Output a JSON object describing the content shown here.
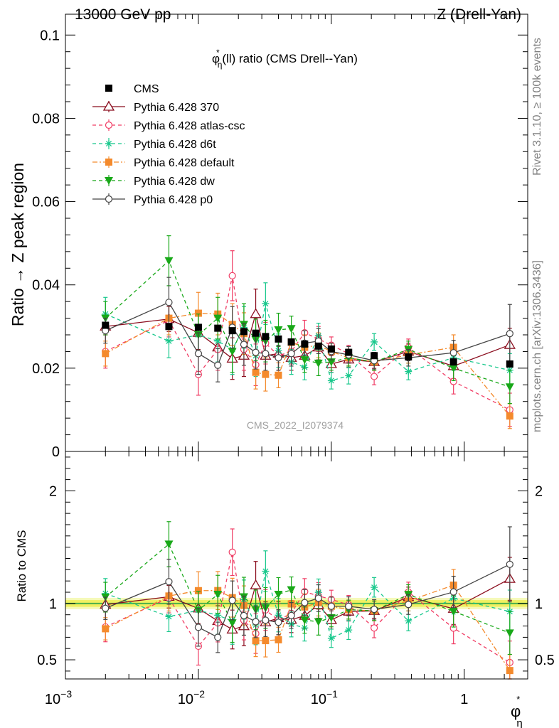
{
  "header": {
    "left": "13000 GeV pp",
    "right": "Z (Drell-Yan)"
  },
  "side": {
    "rivet": "Rivet 3.1.10, ≥ 100k events",
    "mcplots": "mcplots.cern.ch [arXiv:1306.3436]"
  },
  "watermark": "CMS_2022_I2079374",
  "colors": {
    "CMS": "#000000",
    "p370": "#8b0d1e",
    "atlas": "#f03c64",
    "d6t": "#18c88c",
    "default": "#f48a2c",
    "dw": "#18a818",
    "p0": "#444444",
    "band_inner": "#f0f060",
    "band_outer": "#f6f9b8",
    "band_line": "#4cb04c"
  },
  "chart_data": [
    {
      "type": "scatter",
      "panel": "main",
      "title": "φ*η(ll) ratio (CMS Drell--Yan)",
      "title_parts": {
        "phi": "φ",
        "star": "*",
        "eta": "η",
        "rest": "(ll) ratio (CMS Drell--Yan)"
      },
      "ylabel": "Ratio → Z peak region",
      "xlabel_parts": {
        "phi": "φ",
        "star": "*",
        "eta": "η"
      },
      "xscale": "log",
      "xlim": [
        0.001,
        3.0
      ],
      "ylim": [
        0,
        0.105
      ],
      "yticks": [
        {
          "v": 0,
          "label": "0"
        },
        {
          "v": 0.02,
          "label": "0.02"
        },
        {
          "v": 0.04,
          "label": "0.04"
        },
        {
          "v": 0.06,
          "label": "0.06"
        },
        {
          "v": 0.08,
          "label": "0.08"
        },
        {
          "v": 0.1,
          "label": "0.1"
        }
      ],
      "legend_position": "top-left",
      "x": [
        0.002,
        0.006,
        0.01,
        0.014,
        0.018,
        0.022,
        0.027,
        0.032,
        0.04,
        0.05,
        0.063,
        0.08,
        0.1,
        0.135,
        0.21,
        0.38,
        0.83,
        2.2
      ],
      "series": [
        {
          "name": "CMS",
          "key": "CMS",
          "marker": "square-filled",
          "dash": "none",
          "values": [
            0.0303,
            0.03,
            0.0298,
            0.0296,
            0.029,
            0.0288,
            0.0284,
            0.0276,
            0.027,
            0.0263,
            0.0258,
            0.0253,
            0.0246,
            0.0238,
            0.023,
            0.0227,
            0.0215,
            0.021
          ]
        },
        {
          "name": "Pythia 6.428 370",
          "key": "p370",
          "marker": "triangle-open",
          "dash": "solid",
          "values": [
            0.03,
            0.0318,
            0.0285,
            0.025,
            0.0223,
            0.023,
            0.033,
            0.023,
            0.0235,
            0.0225,
            0.023,
            0.025,
            0.021,
            0.0221,
            0.0215,
            0.024,
            0.0205,
            0.0256
          ],
          "errors": [
            0.002,
            0.003,
            0.004,
            0.004,
            0.005,
            0.005,
            0.006,
            0.005,
            0.004,
            0.003,
            0.003,
            0.003,
            0.002,
            0.002,
            0.002,
            0.002,
            0.003,
            0.004
          ]
        },
        {
          "name": "Pythia 6.428 atlas-csc",
          "key": "atlas",
          "marker": "circle-open",
          "dash": "dashed",
          "values": [
            0.024,
            0.0315,
            0.0185,
            0.0245,
            0.0422,
            0.0245,
            0.0208,
            0.026,
            0.023,
            0.024,
            0.0285,
            0.027,
            0.0255,
            0.0235,
            0.018,
            0.025,
            0.0168,
            0.01
          ],
          "errors": [
            0.004,
            0.004,
            0.005,
            0.005,
            0.006,
            0.005,
            0.005,
            0.005,
            0.004,
            0.003,
            0.003,
            0.003,
            0.002,
            0.002,
            0.002,
            0.002,
            0.003,
            0.004
          ]
        },
        {
          "name": "Pythia 6.428 d6t",
          "key": "d6t",
          "marker": "star",
          "dash": "dashed",
          "values": [
            0.033,
            0.0265,
            0.028,
            0.0265,
            0.0245,
            0.0298,
            0.023,
            0.0355,
            0.0242,
            0.0215,
            0.0202,
            0.0278,
            0.017,
            0.0182,
            0.0263,
            0.0192,
            0.0225,
            0.0195
          ],
          "errors": [
            0.004,
            0.004,
            0.005,
            0.005,
            0.006,
            0.005,
            0.005,
            0.005,
            0.004,
            0.003,
            0.003,
            0.003,
            0.002,
            0.002,
            0.002,
            0.002,
            0.003,
            0.004
          ]
        },
        {
          "name": "Pythia 6.428 default",
          "key": "default",
          "marker": "square-filled",
          "dash": "dashdot",
          "values": [
            0.0235,
            0.032,
            0.0332,
            0.033,
            0.0305,
            0.0283,
            0.019,
            0.0185,
            0.0183,
            0.0262,
            0.025,
            0.0255,
            0.024,
            0.0225,
            0.0215,
            0.0232,
            0.025,
            0.0085
          ],
          "errors": [
            0.003,
            0.004,
            0.005,
            0.005,
            0.005,
            0.005,
            0.004,
            0.004,
            0.003,
            0.003,
            0.003,
            0.003,
            0.002,
            0.002,
            0.002,
            0.002,
            0.003,
            0.003
          ]
        },
        {
          "name": "Pythia 6.428 dw",
          "key": "dw",
          "marker": "triangle-down-filled",
          "dash": "dashed",
          "values": [
            0.032,
            0.0458,
            0.028,
            0.032,
            0.024,
            0.0305,
            0.0268,
            0.0265,
            0.0292,
            0.0295,
            0.022,
            0.0212,
            0.0215,
            0.0225,
            0.0215,
            0.0245,
            0.02,
            0.0155
          ],
          "errors": [
            0.004,
            0.006,
            0.005,
            0.005,
            0.005,
            0.005,
            0.005,
            0.005,
            0.004,
            0.003,
            0.003,
            0.003,
            0.002,
            0.002,
            0.002,
            0.002,
            0.003,
            0.004
          ]
        },
        {
          "name": "Pythia 6.428 p0",
          "key": "p0",
          "marker": "circle-open",
          "dash": "solid",
          "values": [
            0.029,
            0.0358,
            0.0235,
            0.0207,
            0.0298,
            0.0257,
            0.0238,
            0.0235,
            0.0225,
            0.0235,
            0.026,
            0.0265,
            0.024,
            0.0232,
            0.0218,
            0.0225,
            0.0237,
            0.0283
          ],
          "errors": [
            0.003,
            0.006,
            0.005,
            0.004,
            0.005,
            0.005,
            0.004,
            0.004,
            0.003,
            0.003,
            0.003,
            0.003,
            0.002,
            0.002,
            0.002,
            0.002,
            0.003,
            0.007
          ]
        }
      ]
    },
    {
      "type": "scatter",
      "panel": "ratio",
      "ylabel": "Ratio to CMS",
      "xscale": "log",
      "xlim": [
        0.001,
        3.0
      ],
      "ylim": [
        0.33,
        2.35
      ],
      "yticks": [
        {
          "v": 0.5,
          "label": "0.5"
        },
        {
          "v": 1,
          "label": "1"
        },
        {
          "v": 2,
          "label": "2"
        }
      ],
      "xticks": [
        {
          "v": 0.001,
          "base": "10",
          "exp": "−3"
        },
        {
          "v": 0.01,
          "base": "10",
          "exp": "−2"
        },
        {
          "v": 0.1,
          "base": "10",
          "exp": "−1"
        },
        {
          "v": 1,
          "label": "1"
        }
      ],
      "reference_band": [
        0.97,
        1.03
      ],
      "reference_band_outer": [
        0.95,
        1.05
      ]
    }
  ]
}
